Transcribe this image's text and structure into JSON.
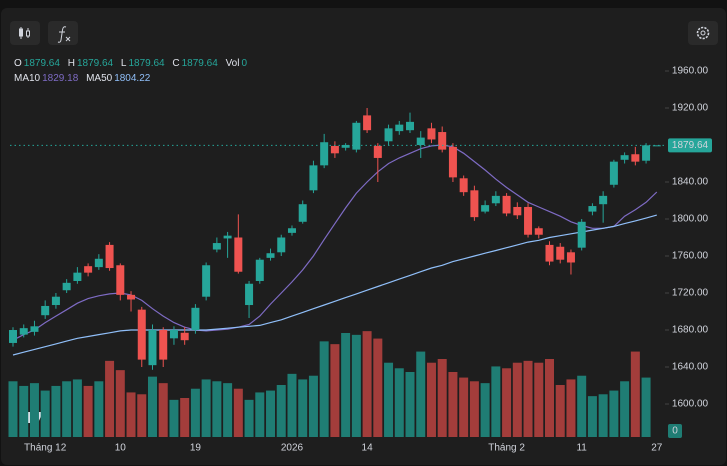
{
  "chart_data": {
    "type": "candlestick",
    "categories": [
      null,
      null,
      null,
      "Tháng 12",
      null,
      null,
      null,
      null,
      null,
      null,
      "10",
      null,
      null,
      null,
      null,
      null,
      null,
      "19",
      null,
      null,
      null,
      null,
      null,
      null,
      null,
      null,
      "2026",
      null,
      null,
      null,
      null,
      null,
      null,
      "14",
      null,
      null,
      null,
      null,
      null,
      null,
      null,
      null,
      null,
      null,
      null,
      null,
      "Tháng 2",
      null,
      null,
      null,
      null,
      null,
      null,
      "11",
      null,
      null,
      null,
      null,
      null,
      null,
      "27"
    ],
    "open": [
      1666,
      1675,
      1678,
      1696,
      1707,
      1723,
      1733,
      1749,
      1748,
      1772,
      1750,
      1718,
      1702,
      1642,
      1680,
      1671,
      1677,
      1680,
      1716,
      1767,
      1779,
      1780,
      1707,
      1733,
      1758,
      1764,
      1785,
      1797,
      1831,
      1858,
      1879,
      1877,
      1875,
      1912,
      1879,
      1884,
      1895,
      1896,
      1880,
      1898,
      1894,
      1878,
      1844,
      1831,
      1808,
      1817,
      1825,
      1813,
      1813,
      1790,
      1772,
      1770,
      1764,
      1769,
      1808,
      1816,
      1837,
      1864,
      1870,
      1863,
      1879.64
    ],
    "high": [
      1683,
      1686,
      1690,
      1712,
      1720,
      1735,
      1748,
      1752,
      1762,
      1775,
      1752,
      1722,
      1705,
      1686,
      1683,
      1684,
      1683,
      1708,
      1753,
      1780,
      1786,
      1805,
      1733,
      1758,
      1768,
      1783,
      1793,
      1820,
      1863,
      1892,
      1884,
      1882,
      1906,
      1920,
      1882,
      1902,
      1906,
      1915,
      1895,
      1904,
      1900,
      1882,
      1847,
      1836,
      1820,
      1830,
      1828,
      1818,
      1817,
      1792,
      1776,
      1774,
      1767,
      1800,
      1817,
      1830,
      1864,
      1872,
      1878,
      1882,
      1879.64
    ],
    "low": [
      1662,
      1672,
      1674,
      1692,
      1703,
      1720,
      1730,
      1738,
      1745,
      1744,
      1712,
      1700,
      1640,
      1637,
      1640,
      1664,
      1664,
      1676,
      1712,
      1764,
      1758,
      1741,
      1693,
      1730,
      1755,
      1760,
      1782,
      1795,
      1828,
      1855,
      1866,
      1874,
      1872,
      1893,
      1840,
      1880,
      1891,
      1893,
      1866,
      1882,
      1872,
      1840,
      1825,
      1798,
      1806,
      1814,
      1803,
      1800,
      1780,
      1779,
      1750,
      1752,
      1740,
      1766,
      1804,
      1796,
      1834,
      1860,
      1858,
      1860,
      1879.64
    ],
    "close": [
      1680,
      1682,
      1684,
      1706,
      1716,
      1731,
      1742,
      1742,
      1757,
      1747,
      1718,
      1713,
      1648,
      1680,
      1648,
      1680,
      1669,
      1704,
      1750,
      1774,
      1782,
      1743,
      1730,
      1756,
      1763,
      1780,
      1790,
      1816,
      1858,
      1883,
      1871,
      1880,
      1904,
      1896,
      1866,
      1898,
      1902,
      1905,
      1888,
      1886,
      1875,
      1845,
      1829,
      1802,
      1815,
      1825,
      1806,
      1804,
      1783,
      1783,
      1754,
      1756,
      1753,
      1797,
      1814,
      1825,
      1862,
      1869,
      1862,
      1879.64,
      1879.64
    ],
    "volume": [
      60,
      55,
      58,
      50,
      55,
      60,
      62,
      55,
      60,
      82,
      72,
      48,
      46,
      65,
      58,
      40,
      42,
      52,
      62,
      60,
      58,
      52,
      40,
      48,
      50,
      56,
      68,
      62,
      66,
      103,
      100,
      112,
      110,
      114,
      106,
      80,
      74,
      70,
      92,
      80,
      84,
      70,
      64,
      60,
      58,
      76,
      74,
      80,
      82,
      80,
      84,
      56,
      62,
      66,
      44,
      46,
      50,
      60,
      92,
      64,
      0
    ],
    "volume_lim": [
      0,
      140
    ],
    "up_color": "#26a69a",
    "down_color": "#ef5350",
    "volume_up_color": "#1f7d74",
    "volume_down_color": "#a33d3b",
    "ohlc_labels": [
      "O",
      "H",
      "L",
      "C",
      "Vol"
    ],
    "series": [
      {
        "name": "MA10",
        "color": "#7e6bc4",
        "values": [
          1669,
          1675,
          1680,
          1688,
          1695,
          1702,
          1709,
          1714,
          1717,
          1719,
          1720,
          1718,
          1712,
          1703,
          1695,
          1688,
          1683,
          1680,
          1679,
          1680,
          1681,
          1683,
          1686,
          1695,
          1708,
          1720,
          1732,
          1745,
          1760,
          1778,
          1795,
          1812,
          1828,
          1840,
          1851,
          1860,
          1866,
          1871,
          1876,
          1879,
          1880,
          1878,
          1871,
          1862,
          1853,
          1843,
          1834,
          1826,
          1818,
          1813,
          1808,
          1803,
          1797,
          1793,
          1790,
          1790,
          1792,
          1803,
          1810,
          1818,
          1829.18
        ]
      },
      {
        "name": "MA50",
        "color": "#90bff9",
        "values": [
          1653,
          1656,
          1659,
          1662,
          1665,
          1668,
          1671,
          1673,
          1675,
          1677,
          1679,
          1680,
          1680,
          1680,
          1680,
          1680,
          1680,
          1680,
          1680,
          1681,
          1682,
          1683,
          1684,
          1685,
          1688,
          1691,
          1695,
          1699,
          1703,
          1707,
          1711,
          1715,
          1719,
          1723,
          1727,
          1731,
          1735,
          1739,
          1743,
          1747,
          1750,
          1754,
          1757,
          1760,
          1763,
          1766,
          1769,
          1772,
          1775,
          1777,
          1780,
          1782,
          1784,
          1786,
          1788,
          1790,
          1792,
          1795,
          1798,
          1801,
          1804.22
        ]
      }
    ],
    "ylim": [
      1561.1,
      1993.5
    ],
    "yticks": [
      {
        "value": 1600,
        "label": "1600.00"
      },
      {
        "value": 1640,
        "label": "1640.00"
      },
      {
        "value": 1680,
        "label": "1680.00"
      },
      {
        "value": 1720,
        "label": "1720.00"
      },
      {
        "value": 1760,
        "label": "1760.00"
      },
      {
        "value": 1800,
        "label": "1800.00"
      },
      {
        "value": 1840,
        "label": "1840.00"
      },
      {
        "value": 1920,
        "label": "1920.00"
      },
      {
        "value": 1960,
        "label": "1960.00"
      }
    ]
  }
}
